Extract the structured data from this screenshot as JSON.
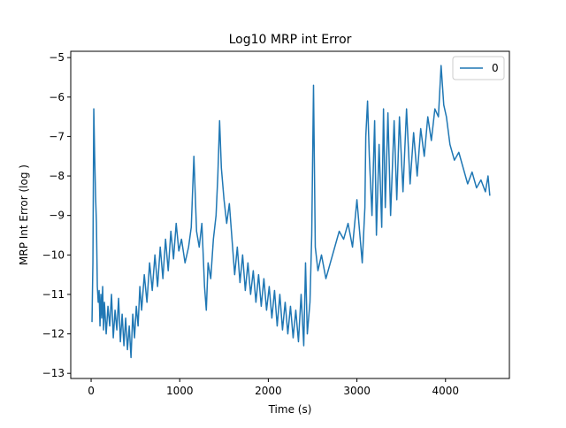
{
  "chart_data": {
    "type": "line",
    "title": "Log10 MRP int Error",
    "x_label": "Time (s)",
    "y_label": "MRP Int Error (log )",
    "legend_position": "upper right",
    "xlim": [
      -230,
      4721
    ],
    "ylim": [
      -13.13,
      -4.84
    ],
    "xticks": [
      0,
      1000,
      2000,
      3000,
      4000
    ],
    "yticks": [
      {
        "value": -13,
        "label": "−13"
      },
      {
        "value": -12,
        "label": "−12"
      },
      {
        "value": -11,
        "label": "−11"
      },
      {
        "value": -10,
        "label": "−10"
      },
      {
        "value": -9,
        "label": "−9"
      },
      {
        "value": -8,
        "label": "−8"
      },
      {
        "value": -7,
        "label": "−7"
      },
      {
        "value": -6,
        "label": "−6"
      },
      {
        "value": -5,
        "label": "−5"
      }
    ],
    "x": [
      10,
      20,
      30,
      40,
      50,
      60,
      70,
      80,
      90,
      100,
      110,
      120,
      130,
      140,
      150,
      170,
      190,
      210,
      230,
      250,
      270,
      290,
      310,
      330,
      350,
      370,
      390,
      410,
      430,
      450,
      470,
      490,
      510,
      530,
      550,
      570,
      600,
      630,
      660,
      690,
      720,
      750,
      780,
      810,
      840,
      870,
      900,
      930,
      960,
      990,
      1020,
      1060,
      1100,
      1130,
      1160,
      1190,
      1220,
      1250,
      1280,
      1300,
      1320,
      1350,
      1380,
      1410,
      1430,
      1450,
      1470,
      1500,
      1530,
      1560,
      1590,
      1620,
      1650,
      1680,
      1710,
      1740,
      1770,
      1800,
      1830,
      1860,
      1890,
      1920,
      1950,
      1980,
      2010,
      2040,
      2070,
      2100,
      2130,
      2160,
      2190,
      2220,
      2250,
      2280,
      2310,
      2340,
      2370,
      2400,
      2420,
      2440,
      2470,
      2490,
      2510,
      2530,
      2560,
      2600,
      2650,
      2700,
      2750,
      2800,
      2850,
      2900,
      2950,
      3000,
      3030,
      3060,
      3090,
      3100,
      3120,
      3140,
      3170,
      3200,
      3220,
      3250,
      3280,
      3300,
      3320,
      3350,
      3380,
      3420,
      3450,
      3480,
      3520,
      3560,
      3600,
      3640,
      3680,
      3720,
      3760,
      3800,
      3840,
      3880,
      3920,
      3950,
      3980,
      4010,
      4050,
      4100,
      4150,
      4200,
      4250,
      4300,
      4350,
      4400,
      4450,
      4480,
      4500
    ],
    "series": [
      {
        "name": "0",
        "color": "#1f77b4",
        "values": [
          -11.7,
          -10.2,
          -6.3,
          -7.5,
          -8.5,
          -9.2,
          -10.8,
          -11.2,
          -10.9,
          -11.8,
          -11.0,
          -11.6,
          -10.8,
          -11.9,
          -11.2,
          -12.0,
          -11.3,
          -11.8,
          -11.0,
          -12.1,
          -11.4,
          -11.9,
          -11.1,
          -12.2,
          -11.5,
          -12.3,
          -11.6,
          -12.4,
          -11.8,
          -12.6,
          -11.5,
          -12.1,
          -11.3,
          -11.8,
          -10.8,
          -11.4,
          -10.5,
          -11.2,
          -10.2,
          -10.9,
          -10.0,
          -10.8,
          -9.8,
          -10.6,
          -9.6,
          -10.4,
          -9.4,
          -10.1,
          -9.2,
          -9.9,
          -9.6,
          -10.2,
          -9.8,
          -9.3,
          -7.5,
          -9.4,
          -9.8,
          -9.2,
          -10.8,
          -11.4,
          -10.2,
          -10.6,
          -9.6,
          -9.0,
          -8.0,
          -6.6,
          -7.8,
          -8.6,
          -9.2,
          -8.7,
          -9.6,
          -10.5,
          -9.8,
          -10.7,
          -10.0,
          -10.9,
          -10.2,
          -11.0,
          -10.4,
          -11.2,
          -10.5,
          -11.3,
          -10.6,
          -11.4,
          -10.8,
          -11.6,
          -10.9,
          -11.8,
          -11.0,
          -11.9,
          -11.2,
          -12.0,
          -11.3,
          -12.1,
          -11.4,
          -12.2,
          -11.0,
          -12.3,
          -10.2,
          -12.0,
          -11.2,
          -9.5,
          -5.7,
          -9.8,
          -10.4,
          -10.0,
          -10.6,
          -10.2,
          -9.8,
          -9.4,
          -9.6,
          -9.2,
          -9.8,
          -8.6,
          -9.4,
          -10.2,
          -8.8,
          -7.0,
          -6.1,
          -7.5,
          -9.0,
          -6.6,
          -9.5,
          -7.2,
          -9.3,
          -6.3,
          -8.8,
          -6.4,
          -9.0,
          -6.6,
          -8.6,
          -6.5,
          -8.4,
          -6.3,
          -8.2,
          -6.9,
          -8.0,
          -6.8,
          -7.5,
          -6.5,
          -7.1,
          -6.3,
          -6.5,
          -5.2,
          -6.2,
          -6.5,
          -7.2,
          -7.6,
          -7.4,
          -7.8,
          -8.2,
          -7.9,
          -8.3,
          -8.1,
          -8.4,
          -8.0,
          -8.5
        ]
      }
    ]
  }
}
